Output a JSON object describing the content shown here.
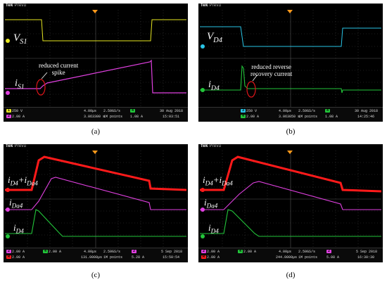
{
  "brand": "Tek",
  "brand_sub": "Prevu",
  "panels": {
    "a": {
      "caption": "(a)",
      "labels": {
        "top": "V",
        "top_sub": "S1",
        "bottom": "i",
        "bottom_sub": "S1"
      },
      "annotation": [
        "reduced current",
        "spike"
      ],
      "status": {
        "ch1": "250 V",
        "ch2": "2.00 A",
        "time": "4.00μs",
        "rate": "2.50GS/s",
        "points": "1M points",
        "trig": "1.08 A",
        "date": "30 Aug 2018",
        "clock": "15:03:51",
        "cursor": "3.063300 s"
      }
    },
    "b": {
      "caption": "(b)",
      "labels": {
        "top": "V",
        "top_sub": "D4",
        "bottom": "i",
        "bottom_sub": "D4"
      },
      "annotation": [
        "reduced reverse",
        "recovery current"
      ],
      "status": {
        "ch1": "250 V",
        "ch2": "2.00 A",
        "time": "4.00μs",
        "rate": "2.50GS/s",
        "points": "1M points",
        "trig": "1.08 A",
        "date": "30 Aug 2018",
        "clock": "14:25:46",
        "cursor": "3.063050 s"
      }
    },
    "c": {
      "caption": "(c)",
      "labels": {
        "sum": "i",
        "sum_sub1": "D4",
        "sum_plus": "+i",
        "sum_sub2": "Da4",
        "mid": "i",
        "mid_sub": "Da4",
        "low": "i",
        "low_sub": "D4"
      },
      "status": {
        "ch1": "2.00 A",
        "ch2": "2.00 A",
        "ch3": "2.00 A",
        "time": "4.00μs",
        "rate": "2.50GS/s",
        "points": "1M points",
        "trig": "5.28 A",
        "date": "5 Sep 2018",
        "clock": "15:50:54",
        "cursor": "131.0000μs"
      }
    },
    "d": {
      "caption": "(d)",
      "labels": {
        "sum": "i",
        "sum_sub1": "D4",
        "sum_plus": "+i",
        "sum_sub2": "Da4",
        "mid": "i",
        "mid_sub": "Da4",
        "low": "i",
        "low_sub": "D4"
      },
      "status": {
        "ch1": "2.00 A",
        "ch2": "2.00 A",
        "ch3": "2.00 A",
        "time": "4.00μs",
        "rate": "2.50GS/s",
        "points": "1M points",
        "trig": "5.08 A",
        "date": "5 Sep 2018",
        "clock": "16:30:30",
        "cursor": "244.0000μs"
      }
    }
  },
  "colors": {
    "yellow": "#e6e620",
    "magenta": "#e040e0",
    "cyan": "#29c5e6",
    "green": "#22c53a",
    "red": "#ff1a1a",
    "orange": "#ff9a1a",
    "annotation_ring": "#e0161a"
  }
}
